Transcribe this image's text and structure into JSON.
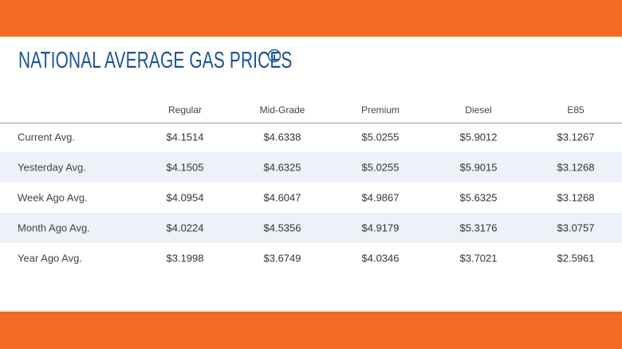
{
  "header": {
    "title": "NATIONAL AVERAGE GAS PRICES"
  },
  "table": {
    "columns": [
      "Regular",
      "Mid-Grade",
      "Premium",
      "Diesel",
      "E85"
    ],
    "rows": [
      [
        "Current Avg.",
        "$4.1514",
        "$4.6338",
        "$5.0255",
        "$5.9012",
        "$3.1267"
      ],
      [
        "Yesterday Avg.",
        "$4.1505",
        "$4.6325",
        "$5.0255",
        "$5.9015",
        "$3.1268"
      ],
      [
        "Week Ago Avg.",
        "$4.0954",
        "$4.6047",
        "$4.9867",
        "$5.6325",
        "$3.1268"
      ],
      [
        "Month Ago Avg.",
        "$4.0224",
        "$4.5356",
        "$4.9179",
        "$5.3176",
        "$3.0757"
      ],
      [
        "Year Ago Avg.",
        "$3.1998",
        "$3.6749",
        "$4.0346",
        "$3.7021",
        "$2.5961"
      ]
    ]
  }
}
